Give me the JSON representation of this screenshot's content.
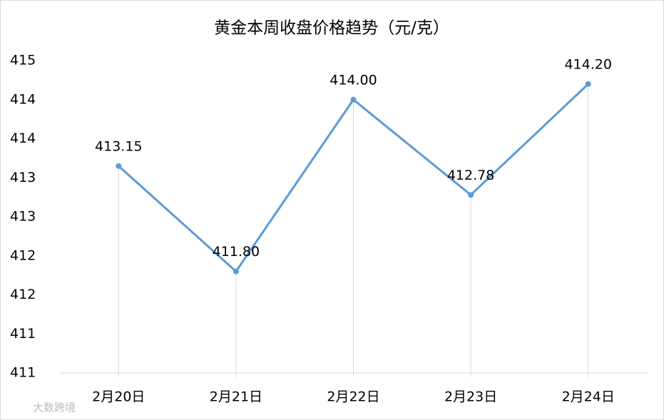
{
  "chart_data": {
    "type": "line",
    "title": "黄金本周收盘价格趋势（元/克）",
    "categories": [
      "2月20日",
      "2月21日",
      "2月22日",
      "2月23日",
      "2月24日"
    ],
    "series": [
      {
        "name": "收盘价格",
        "color": "#5b9bd5",
        "values": [
          413.15,
          411.8,
          414.0,
          412.78,
          414.2
        ],
        "value_labels": [
          "413.15",
          "411.80",
          "414.00",
          "412.78",
          "414.20"
        ]
      }
    ],
    "ylim": [
      410.5,
      414.5
    ],
    "yticks": [
      {
        "value": 410.5,
        "label": "411"
      },
      411,
      {
        "value": 411.5,
        "label": "412"
      },
      412,
      {
        "value": 412.5,
        "label": "413"
      },
      413,
      {
        "value": 413.5,
        "label": "414"
      },
      414,
      {
        "value": 414.5,
        "label": "415"
      }
    ],
    "grid": false,
    "drop_lines": true,
    "watermark": "大数跨境"
  }
}
